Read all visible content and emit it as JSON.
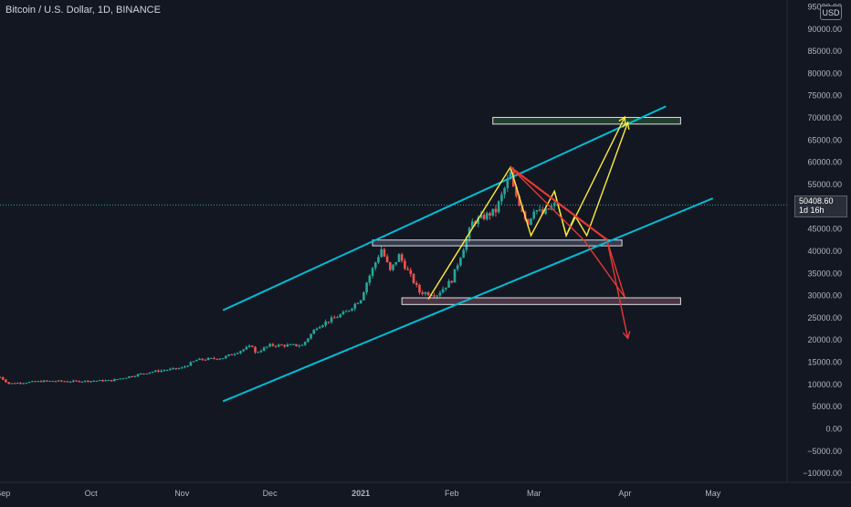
{
  "header": {
    "symbol_title": "Bitcoin / U.S. Dollar, 1D, BINANCE",
    "currency_badge": "USD"
  },
  "last_price": {
    "price_label": "50408.60",
    "countdown_label": "1d 16h"
  },
  "colors": {
    "background": "#131722",
    "candle_up": "#26a69a",
    "candle_down": "#ef5350",
    "channel": "#00bcd4",
    "projection_bull": "#ffeb3b",
    "projection_bear": "#e53935",
    "target_zone": "#4caf50",
    "support_zone": "#9fa8da",
    "lower_zone": "#f48fb1",
    "axis_text": "#b2b5be"
  },
  "chart_data": {
    "type": "candlestick",
    "title": "Bitcoin / U.S. Dollar, 1D, BINANCE",
    "x_tick_labels": [
      "Sep",
      "Oct",
      "Nov",
      "Dec",
      "2021",
      "Feb",
      "Mar",
      "Apr",
      "May"
    ],
    "y_tick_labels": [
      "95000.00",
      "90000.00",
      "85000.00",
      "80000.00",
      "75000.00",
      "70000.00",
      "65000.00",
      "60000.00",
      "55000.00",
      "50000.00",
      "45000.00",
      "40000.00",
      "35000.00",
      "30000.00",
      "25000.00",
      "20000.00",
      "15000.00",
      "10000.00",
      "5000.00",
      "0.00",
      "−5000.00",
      "−10000.00"
    ],
    "ylim": [
      -11000,
      95500
    ],
    "xlim": [
      "2020-08-31",
      "2021-05-07"
    ],
    "last_price": 50408.6,
    "price_series": [
      {
        "date": "2020-08-31",
        "close": 11650
      },
      {
        "date": "2020-09-03",
        "close": 10200
      },
      {
        "date": "2020-09-15",
        "close": 10750
      },
      {
        "date": "2020-09-25",
        "close": 10700
      },
      {
        "date": "2020-10-08",
        "close": 10900
      },
      {
        "date": "2020-10-21",
        "close": 12800
      },
      {
        "date": "2020-11-01",
        "close": 13700
      },
      {
        "date": "2020-11-06",
        "close": 15500
      },
      {
        "date": "2020-11-15",
        "close": 16000
      },
      {
        "date": "2020-11-25",
        "close": 18700
      },
      {
        "date": "2020-11-26",
        "close": 17100
      },
      {
        "date": "2020-12-01",
        "close": 18800
      },
      {
        "date": "2020-12-12",
        "close": 18800
      },
      {
        "date": "2020-12-17",
        "close": 23000
      },
      {
        "date": "2020-12-27",
        "close": 26300
      },
      {
        "date": "2021-01-01",
        "close": 29300
      },
      {
        "date": "2021-01-03",
        "close": 33000
      },
      {
        "date": "2021-01-08",
        "close": 40500
      },
      {
        "date": "2021-01-11",
        "close": 35500
      },
      {
        "date": "2021-01-14",
        "close": 39000
      },
      {
        "date": "2021-01-21",
        "close": 30800
      },
      {
        "date": "2021-01-27",
        "close": 30300
      },
      {
        "date": "2021-02-01",
        "close": 33500
      },
      {
        "date": "2021-02-08",
        "close": 46400
      },
      {
        "date": "2021-02-16",
        "close": 49100
      },
      {
        "date": "2021-02-21",
        "close": 57400
      },
      {
        "date": "2021-02-22",
        "close": 54000
      },
      {
        "date": "2021-02-27",
        "close": 46200
      },
      {
        "date": "2021-03-01",
        "close": 49600
      },
      {
        "date": "2021-03-04",
        "close": 48400
      },
      {
        "date": "2021-03-08",
        "close": 50400
      }
    ],
    "channel_lines": [
      {
        "name": "upper",
        "from": [
          "2020-11-15",
          26700
        ],
        "to": [
          "2021-04-15",
          72600
        ]
      },
      {
        "name": "lower",
        "from": [
          "2020-11-15",
          6200
        ],
        "to": [
          "2021-05-01",
          51900
        ]
      }
    ],
    "zones": [
      {
        "name": "target",
        "from_date": "2021-02-15",
        "to_date": "2021-04-20",
        "top": 70100,
        "bottom": 68600
      },
      {
        "name": "support",
        "from_date": "2021-01-05",
        "to_date": "2021-03-31",
        "top": 42500,
        "bottom": 41200
      },
      {
        "name": "lower",
        "from_date": "2021-01-15",
        "to_date": "2021-04-20",
        "top": 29500,
        "bottom": 28000
      }
    ],
    "projections": [
      {
        "name": "bull_path_a",
        "color": "yellow",
        "points": [
          [
            "2021-01-24",
            29200
          ],
          [
            "2021-02-21",
            58900
          ],
          [
            "2021-02-28",
            43500
          ],
          [
            "2021-03-08",
            53500
          ],
          [
            "2021-03-12",
            43500
          ],
          [
            "2021-04-01",
            70200
          ]
        ]
      },
      {
        "name": "bull_path_b",
        "color": "yellow",
        "points": [
          [
            "2021-03-08",
            53500
          ],
          [
            "2021-03-12",
            43500
          ],
          [
            "2021-03-15",
            48000
          ],
          [
            "2021-03-19",
            43500
          ],
          [
            "2021-04-02",
            69000
          ]
        ]
      },
      {
        "name": "bear_path",
        "color": "red",
        "points": [
          [
            "2021-02-21",
            58900
          ],
          [
            "2021-03-18",
            42500
          ],
          [
            "2021-04-01",
            29600
          ],
          [
            "2021-03-26",
            42200
          ],
          [
            "2021-04-02",
            20400
          ]
        ]
      },
      {
        "name": "downtrend",
        "color": "red",
        "points": [
          [
            "2021-02-21",
            58900
          ],
          [
            "2021-03-26",
            42500
          ]
        ]
      }
    ]
  }
}
